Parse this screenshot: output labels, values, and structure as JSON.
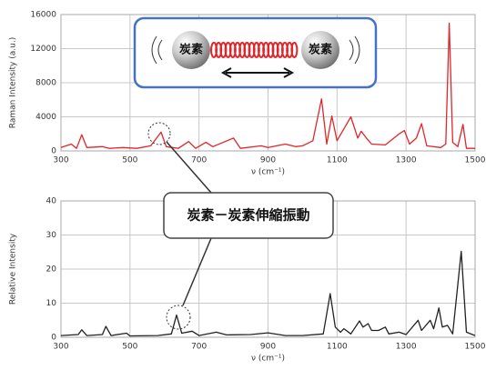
{
  "chart_data": [
    {
      "type": "line",
      "ylabel": "Raman Intensity (a.u.)",
      "xlabel": "ν (cm⁻¹)",
      "color": "#e0262a",
      "x": [
        300,
        330,
        345,
        360,
        375,
        420,
        440,
        480,
        520,
        560,
        590,
        605,
        640,
        670,
        690,
        720,
        740,
        800,
        820,
        880,
        900,
        950,
        980,
        1000,
        1030,
        1055,
        1070,
        1085,
        1100,
        1140,
        1160,
        1170,
        1185,
        1200,
        1240,
        1280,
        1295,
        1310,
        1330,
        1345,
        1360,
        1400,
        1415,
        1425,
        1435,
        1450,
        1465,
        1475,
        1490,
        1500
      ],
      "values": [
        400,
        800,
        300,
        1900,
        400,
        500,
        300,
        400,
        300,
        600,
        2200,
        500,
        300,
        1100,
        300,
        1000,
        500,
        1500,
        300,
        600,
        400,
        800,
        500,
        600,
        1200,
        6100,
        800,
        4100,
        1200,
        4000,
        1500,
        2300,
        1500,
        800,
        700,
        2000,
        2400,
        800,
        1500,
        3200,
        600,
        400,
        800,
        15000,
        1000,
        500,
        3100,
        300,
        300,
        300
      ],
      "xlim": [
        300,
        1500
      ],
      "xticks": [
        300,
        500,
        700,
        900,
        1100,
        1300,
        1500
      ],
      "ylim": [
        0,
        16000
      ],
      "yticks": [
        0,
        4000,
        8000,
        12000,
        16000
      ],
      "grid": true
    },
    {
      "type": "line",
      "ylabel": "Relative Intensity",
      "xlabel": "ν (cm⁻¹)",
      "color": "#222222",
      "x": [
        300,
        350,
        360,
        375,
        420,
        430,
        445,
        490,
        500,
        580,
        620,
        635,
        650,
        680,
        700,
        750,
        780,
        850,
        900,
        950,
        1000,
        1060,
        1080,
        1095,
        1110,
        1120,
        1140,
        1165,
        1175,
        1190,
        1200,
        1220,
        1240,
        1250,
        1280,
        1300,
        1335,
        1345,
        1370,
        1380,
        1395,
        1405,
        1420,
        1435,
        1460,
        1475,
        1500
      ],
      "values": [
        0.5,
        0.8,
        2.2,
        0.5,
        0.8,
        3.2,
        0.5,
        1.2,
        0.4,
        0.5,
        1,
        6.5,
        1.2,
        1.8,
        0.5,
        1.5,
        0.7,
        0.8,
        1.3,
        0.5,
        0.5,
        1,
        12.8,
        3,
        1.5,
        2.5,
        1,
        4.8,
        3,
        4,
        2,
        2,
        3,
        1,
        1.5,
        0.8,
        5,
        2,
        5,
        2.5,
        8.6,
        3,
        3.5,
        1,
        25.2,
        1.5,
        0.5
      ],
      "xlim": [
        300,
        1500
      ],
      "xticks": [
        300,
        500,
        700,
        900,
        1100,
        1300,
        1500
      ],
      "ylim": [
        0,
        40
      ],
      "yticks": [
        0,
        10,
        20,
        30,
        40
      ],
      "grid": true
    }
  ],
  "diagram": {
    "atom_left": "炭素",
    "atom_right": "炭素",
    "callout": "炭素－炭素伸縮振動"
  }
}
